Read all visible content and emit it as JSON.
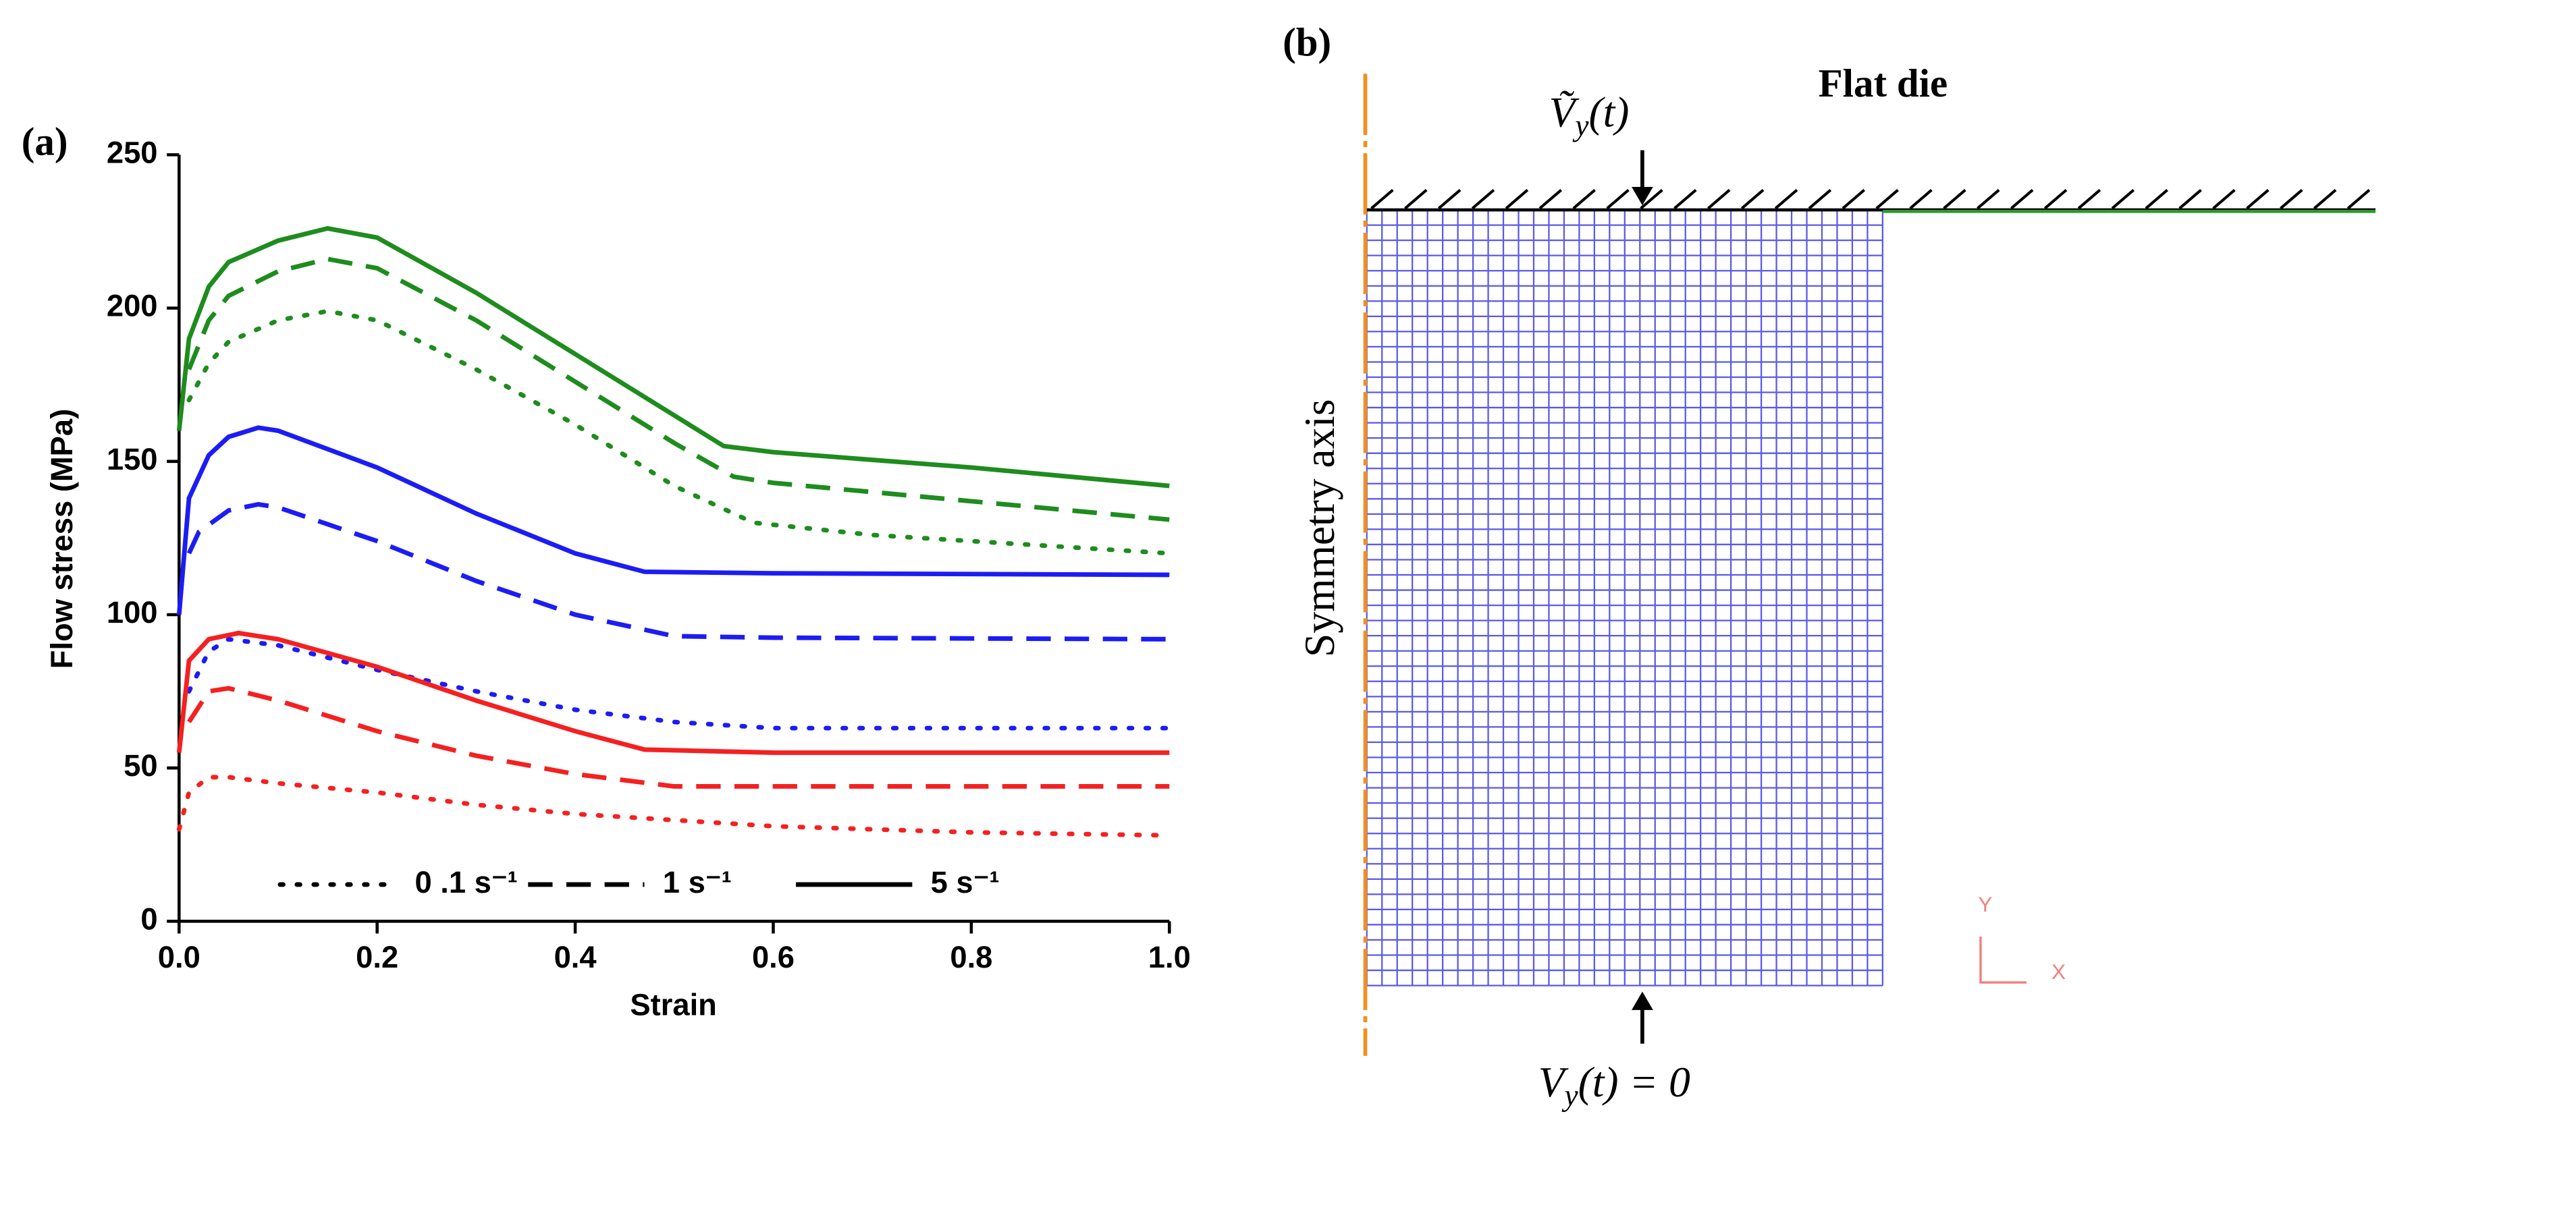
{
  "chart_data": {
    "type": "line",
    "panel_label": "(a)",
    "xlabel": "Strain",
    "ylabel": "Flow stress (MPa)",
    "xlim": [
      0,
      1
    ],
    "ylim": [
      0,
      250
    ],
    "xticks": [
      {
        "value": 0,
        "label": "0.0"
      },
      0.2,
      0.4,
      0.6,
      0.8,
      {
        "value": 1,
        "label": "1.0"
      }
    ],
    "yticks": [
      0,
      50,
      100,
      150,
      200,
      250
    ],
    "grid": false,
    "legend_position": "bottom",
    "legend": [
      {
        "label": "0 .1 s⁻¹",
        "dash": "dotted"
      },
      {
        "label": "1 s⁻¹",
        "dash": "dashed"
      },
      {
        "label": "5 s⁻¹",
        "dash": "solid"
      }
    ],
    "series": [
      {
        "color": "#1e8c1e",
        "dash": "solid",
        "x": [
          0,
          0.01,
          0.03,
          0.05,
          0.1,
          0.15,
          0.2,
          0.3,
          0.4,
          0.5,
          0.55,
          0.6,
          0.8,
          1.0
        ],
        "values": [
          160,
          190,
          207,
          215,
          222,
          226,
          223,
          205,
          185,
          165,
          155,
          153,
          148,
          142
        ]
      },
      {
        "color": "#1e8c1e",
        "dash": "dashed",
        "x": [
          0.01,
          0.03,
          0.05,
          0.1,
          0.15,
          0.2,
          0.3,
          0.4,
          0.5,
          0.56,
          0.6,
          0.8,
          1.0
        ],
        "values": [
          180,
          196,
          204,
          212,
          216,
          213,
          196,
          176,
          156,
          145,
          143,
          137,
          131
        ]
      },
      {
        "color": "#1e8c1e",
        "dash": "dotted",
        "x": [
          0.01,
          0.03,
          0.05,
          0.1,
          0.15,
          0.2,
          0.3,
          0.4,
          0.5,
          0.58,
          0.7,
          0.8,
          1.0
        ],
        "values": [
          170,
          182,
          189,
          196,
          199,
          196,
          180,
          162,
          142,
          130,
          126,
          124,
          120
        ]
      },
      {
        "color": "#1c1cf5",
        "dash": "solid",
        "x": [
          0,
          0.01,
          0.03,
          0.05,
          0.08,
          0.1,
          0.2,
          0.3,
          0.4,
          0.47,
          0.6,
          1.0
        ],
        "values": [
          100,
          138,
          152,
          158,
          161,
          160,
          148,
          133,
          120,
          114,
          113.5,
          113
        ]
      },
      {
        "color": "#1c1cf5",
        "dash": "dashed",
        "x": [
          0.01,
          0.02,
          0.05,
          0.08,
          0.1,
          0.2,
          0.3,
          0.4,
          0.5,
          0.6,
          1.0
        ],
        "values": [
          120,
          127,
          134,
          136,
          135,
          124,
          111,
          100,
          93,
          92.5,
          92
        ]
      },
      {
        "color": "#1c1cf5",
        "dash": "dotted",
        "x": [
          0.01,
          0.03,
          0.05,
          0.1,
          0.2,
          0.3,
          0.4,
          0.5,
          0.6,
          1.0
        ],
        "values": [
          75,
          88,
          92,
          90,
          82,
          75,
          69,
          65,
          63,
          63
        ]
      },
      {
        "color": "#f52020",
        "dash": "solid",
        "x": [
          0,
          0.01,
          0.03,
          0.06,
          0.1,
          0.2,
          0.3,
          0.4,
          0.47,
          0.6,
          1.0
        ],
        "values": [
          55,
          85,
          92,
          94,
          92,
          83,
          72,
          62,
          56,
          55,
          55
        ]
      },
      {
        "color": "#f52020",
        "dash": "dashed",
        "x": [
          0.01,
          0.03,
          0.05,
          0.1,
          0.2,
          0.3,
          0.4,
          0.5,
          0.6,
          1.0
        ],
        "values": [
          65,
          75,
          76,
          72,
          62,
          54,
          48,
          44,
          44,
          44
        ]
      },
      {
        "color": "#f52020",
        "dash": "dotted",
        "x": [
          0,
          0.01,
          0.03,
          0.05,
          0.1,
          0.2,
          0.3,
          0.4,
          0.5,
          0.6,
          0.8,
          1.0
        ],
        "values": [
          30,
          42,
          47,
          47,
          45,
          42,
          38,
          35,
          33,
          31,
          29,
          28
        ]
      }
    ]
  },
  "diagram": {
    "panel_label": "(b)",
    "die_label": "Flat die",
    "axis_label": "Symmetry axis",
    "top_velocity": {
      "main": "Ṽ",
      "sub": "y",
      "rest": "(t)"
    },
    "bottom_velocity": {
      "main": "V",
      "sub": "y",
      "rest": "(t) = 0"
    },
    "coord_y": "Y",
    "coord_x": "X"
  }
}
